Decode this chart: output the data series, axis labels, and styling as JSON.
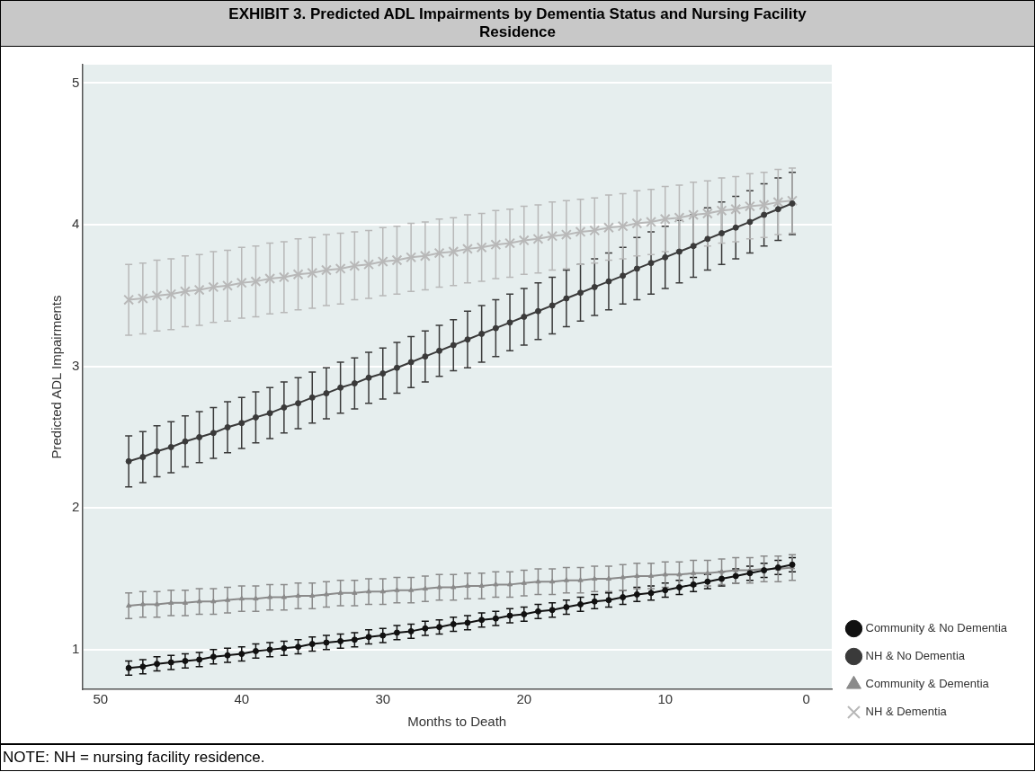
{
  "chart_data": {
    "type": "line",
    "title": "EXHIBIT 3. Predicted ADL Impairments by Dementia Status and Nursing Facility Residence",
    "xlabel": "Months to Death",
    "ylabel": "Predicted ADL Impairments",
    "annotations": [
      "NOTE: NH = nursing facility residence."
    ],
    "x": [
      48,
      47,
      46,
      45,
      44,
      43,
      42,
      41,
      40,
      39,
      38,
      37,
      36,
      35,
      34,
      33,
      32,
      31,
      30,
      29,
      28,
      27,
      26,
      25,
      24,
      23,
      22,
      21,
      20,
      19,
      18,
      17,
      16,
      15,
      14,
      13,
      12,
      11,
      10,
      9,
      8,
      7,
      6,
      5,
      4,
      3,
      2,
      1
    ],
    "xlim": [
      51.3,
      -1.8
    ],
    "xticks": [
      50,
      40,
      30,
      20,
      10,
      0
    ],
    "ylim": [
      0.72,
      5.13
    ],
    "yticks": [
      1,
      2,
      3,
      4,
      5
    ],
    "grid": "y",
    "legend": "right",
    "line_style": "solid",
    "series": [
      {
        "name": "Community & No Dementia",
        "color": "#111111",
        "marker": "circle",
        "values": [
          0.87,
          0.88,
          0.9,
          0.91,
          0.92,
          0.93,
          0.95,
          0.96,
          0.97,
          0.99,
          1.0,
          1.01,
          1.02,
          1.04,
          1.05,
          1.06,
          1.07,
          1.09,
          1.1,
          1.12,
          1.13,
          1.15,
          1.16,
          1.18,
          1.19,
          1.21,
          1.22,
          1.24,
          1.25,
          1.27,
          1.28,
          1.3,
          1.32,
          1.34,
          1.35,
          1.37,
          1.39,
          1.4,
          1.42,
          1.44,
          1.46,
          1.48,
          1.5,
          1.52,
          1.54,
          1.56,
          1.58,
          1.6
        ],
        "errors": [
          0.05,
          0.05,
          0.05,
          0.05,
          0.05,
          0.05,
          0.05,
          0.05,
          0.05,
          0.05,
          0.05,
          0.05,
          0.05,
          0.05,
          0.05,
          0.05,
          0.05,
          0.05,
          0.05,
          0.05,
          0.05,
          0.05,
          0.05,
          0.05,
          0.05,
          0.05,
          0.05,
          0.05,
          0.05,
          0.05,
          0.05,
          0.05,
          0.05,
          0.05,
          0.05,
          0.05,
          0.05,
          0.05,
          0.05,
          0.05,
          0.05,
          0.05,
          0.05,
          0.05,
          0.05,
          0.05,
          0.05,
          0.05
        ]
      },
      {
        "name": "NH & No Dementia",
        "color": "#3a3a3a",
        "marker": "circle",
        "values": [
          2.33,
          2.36,
          2.4,
          2.43,
          2.47,
          2.5,
          2.53,
          2.57,
          2.6,
          2.64,
          2.67,
          2.71,
          2.74,
          2.78,
          2.81,
          2.85,
          2.88,
          2.92,
          2.95,
          2.99,
          3.03,
          3.07,
          3.11,
          3.15,
          3.19,
          3.23,
          3.27,
          3.31,
          3.35,
          3.39,
          3.43,
          3.48,
          3.52,
          3.56,
          3.6,
          3.64,
          3.69,
          3.73,
          3.77,
          3.81,
          3.85,
          3.9,
          3.94,
          3.98,
          4.02,
          4.07,
          4.11,
          4.15
        ],
        "errors": [
          0.18,
          0.18,
          0.18,
          0.18,
          0.18,
          0.18,
          0.18,
          0.18,
          0.18,
          0.18,
          0.18,
          0.18,
          0.18,
          0.18,
          0.18,
          0.18,
          0.18,
          0.18,
          0.18,
          0.18,
          0.18,
          0.18,
          0.18,
          0.18,
          0.2,
          0.2,
          0.2,
          0.2,
          0.2,
          0.2,
          0.2,
          0.2,
          0.2,
          0.2,
          0.2,
          0.2,
          0.22,
          0.22,
          0.22,
          0.22,
          0.22,
          0.22,
          0.22,
          0.22,
          0.22,
          0.22,
          0.22,
          0.22
        ]
      },
      {
        "name": "Community & Dementia",
        "color": "#8a8a8a",
        "marker": "triangle",
        "values": [
          1.31,
          1.32,
          1.32,
          1.33,
          1.33,
          1.34,
          1.34,
          1.35,
          1.36,
          1.36,
          1.37,
          1.37,
          1.38,
          1.38,
          1.39,
          1.4,
          1.4,
          1.41,
          1.41,
          1.42,
          1.42,
          1.43,
          1.44,
          1.44,
          1.45,
          1.45,
          1.46,
          1.46,
          1.47,
          1.48,
          1.48,
          1.49,
          1.49,
          1.5,
          1.5,
          1.51,
          1.52,
          1.52,
          1.53,
          1.53,
          1.54,
          1.54,
          1.55,
          1.56,
          1.56,
          1.57,
          1.57,
          1.58
        ],
        "errors": [
          0.09,
          0.09,
          0.09,
          0.09,
          0.09,
          0.09,
          0.09,
          0.09,
          0.09,
          0.09,
          0.09,
          0.09,
          0.09,
          0.09,
          0.09,
          0.09,
          0.09,
          0.09,
          0.09,
          0.09,
          0.09,
          0.09,
          0.09,
          0.09,
          0.09,
          0.09,
          0.09,
          0.09,
          0.09,
          0.09,
          0.09,
          0.09,
          0.09,
          0.09,
          0.09,
          0.09,
          0.09,
          0.09,
          0.09,
          0.09,
          0.09,
          0.09,
          0.09,
          0.09,
          0.09,
          0.09,
          0.09,
          0.09
        ]
      },
      {
        "name": "NH & Dementia",
        "color": "#b8b8b8",
        "marker": "cross",
        "values": [
          3.47,
          3.48,
          3.5,
          3.51,
          3.53,
          3.54,
          3.56,
          3.57,
          3.59,
          3.6,
          3.62,
          3.63,
          3.65,
          3.66,
          3.68,
          3.69,
          3.71,
          3.72,
          3.74,
          3.75,
          3.77,
          3.78,
          3.8,
          3.81,
          3.83,
          3.84,
          3.86,
          3.87,
          3.89,
          3.9,
          3.92,
          3.93,
          3.95,
          3.96,
          3.98,
          3.99,
          4.01,
          4.02,
          4.04,
          4.05,
          4.07,
          4.08,
          4.1,
          4.11,
          4.13,
          4.14,
          4.16,
          4.17
        ],
        "errors": [
          0.25,
          0.25,
          0.25,
          0.25,
          0.25,
          0.25,
          0.25,
          0.25,
          0.25,
          0.25,
          0.25,
          0.25,
          0.25,
          0.25,
          0.25,
          0.25,
          0.24,
          0.24,
          0.24,
          0.24,
          0.24,
          0.24,
          0.24,
          0.24,
          0.24,
          0.24,
          0.24,
          0.24,
          0.24,
          0.24,
          0.24,
          0.24,
          0.23,
          0.23,
          0.23,
          0.23,
          0.23,
          0.23,
          0.23,
          0.23,
          0.23,
          0.23,
          0.23,
          0.23,
          0.23,
          0.23,
          0.23,
          0.23
        ]
      }
    ]
  }
}
